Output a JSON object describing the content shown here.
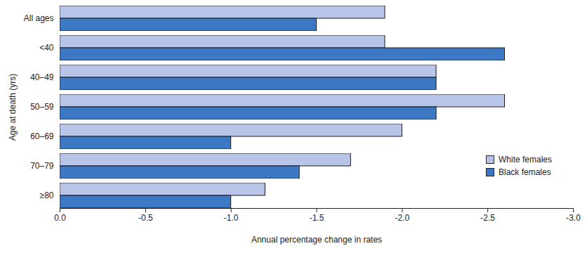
{
  "chart_data": {
    "type": "bar",
    "orientation": "horizontal",
    "xlabel": "Annual percentage change in rates",
    "ylabel": "Age at death (yrs)",
    "categories": [
      "All ages",
      "<40",
      "40–49",
      "50–59",
      "60–69",
      "70–79",
      "≥80"
    ],
    "series": [
      {
        "name": "White females",
        "color": "#b9c5e8",
        "values": [
          -1.9,
          -1.9,
          -2.2,
          -2.6,
          -2.0,
          -1.7,
          -1.2
        ]
      },
      {
        "name": "Black females",
        "color": "#3c78c3",
        "values": [
          -1.5,
          -2.6,
          -2.2,
          -2.2,
          -1.0,
          -1.4,
          -1.0
        ]
      }
    ],
    "xlim": [
      0,
      -3
    ],
    "xticks": [
      {
        "value": 0,
        "label": "0.0"
      },
      -0.5,
      {
        "value": -1,
        "label": "-1.0"
      },
      -1.5,
      {
        "value": -2,
        "label": "-2.0"
      },
      -2.5,
      {
        "value": -3,
        "label": "-3.0"
      }
    ],
    "legend": "right",
    "grid": false
  }
}
